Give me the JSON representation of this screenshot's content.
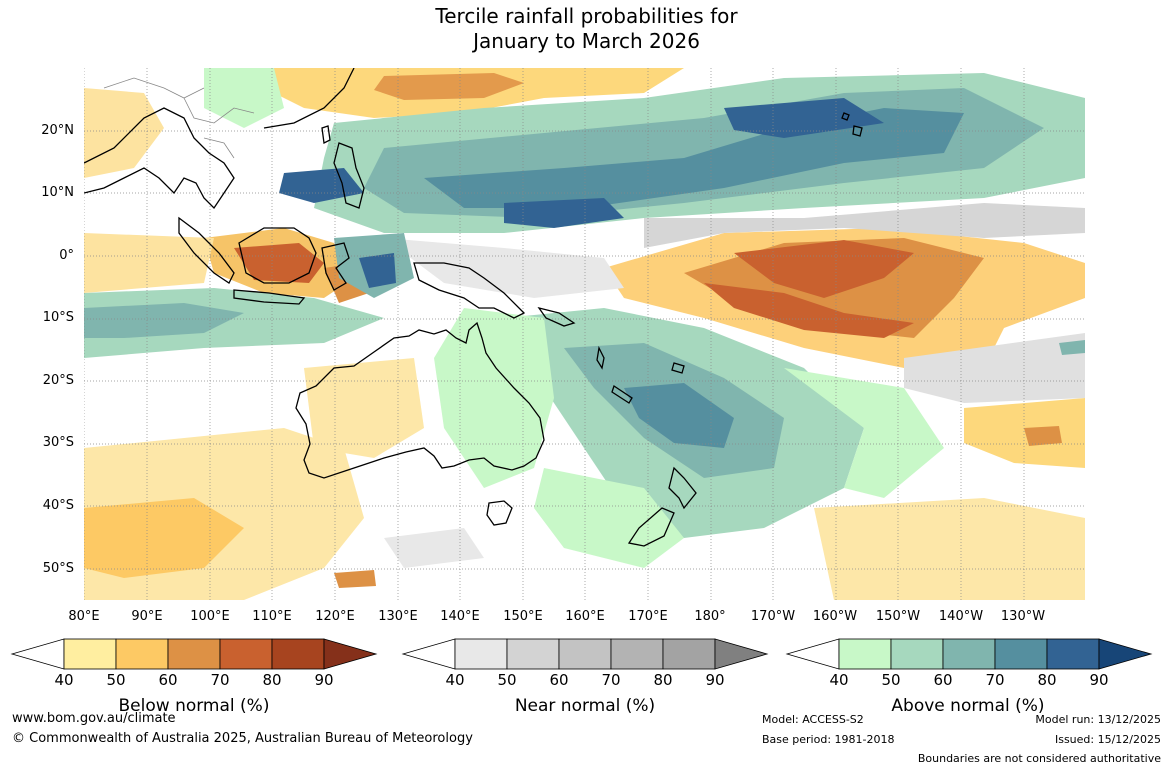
{
  "title": {
    "line1": "Tercile rainfall probabilities for",
    "line2": "January to March 2026"
  },
  "map": {
    "lat_labels": [
      "20°N",
      "10°N",
      "0°",
      "10°S",
      "20°S",
      "30°S",
      "40°S",
      "50°S"
    ],
    "lon_labels": [
      "80°E",
      "90°E",
      "100°E",
      "110°E",
      "120°E",
      "130°E",
      "140°E",
      "150°E",
      "160°E",
      "170°E",
      "180°",
      "170°W",
      "160°W",
      "150°W",
      "140°W",
      "130°W"
    ]
  },
  "legend": {
    "ticks": [
      "40",
      "50",
      "60",
      "70",
      "80",
      "90"
    ],
    "below": {
      "label": "Below normal (%)",
      "colors": [
        "#ffffff",
        "#ffeea0",
        "#fdc964",
        "#dd9145",
        "#c9612f",
        "#a7441f",
        "#85301a"
      ]
    },
    "near": {
      "label": "Near normal (%)",
      "colors": [
        "#ffffff",
        "#e8e8e8",
        "#d3d3d3",
        "#c3c3c3",
        "#b3b3b3",
        "#a3a3a3",
        "#808080"
      ]
    },
    "above": {
      "label": "Above normal (%)",
      "colors": [
        "#ffffff",
        "#c8f8c8",
        "#a6d8be",
        "#80b5ae",
        "#558f9f",
        "#326393",
        "#174577"
      ]
    }
  },
  "footer": {
    "url": "www.bom.gov.au/climate",
    "copyright": "© Commonwealth of Australia 2025, Australian Bureau of Meteorology",
    "model": "Model: ACCESS-S2",
    "base_period": "Base period: 1981-2018",
    "model_run": "Model run: 13/12/2025",
    "issued": "Issued: 15/12/2025",
    "disclaimer": "Boundaries are not considered authoritative"
  }
}
